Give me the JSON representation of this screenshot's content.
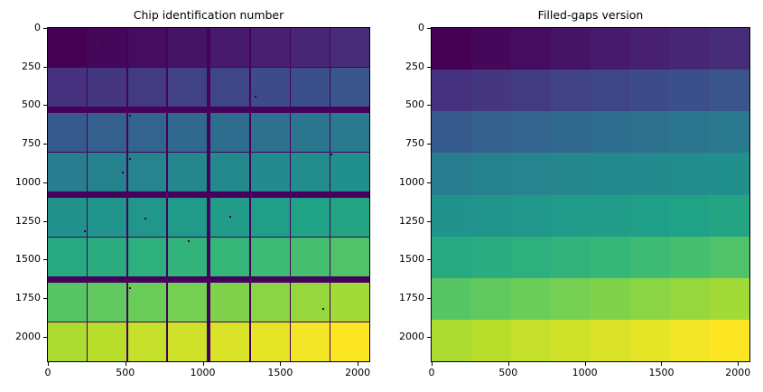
{
  "figure": {
    "background": "#ffffff"
  },
  "colormap": {
    "name": "viridis",
    "anchors": [
      "#440154",
      "#482878",
      "#3e4989",
      "#31688e",
      "#26828e",
      "#21918c",
      "#1fa187",
      "#35b779",
      "#6ece58",
      "#b5de2b",
      "#fde725"
    ],
    "gap_color": "#45015c",
    "speck_color": "#2e063f",
    "value_min": 0,
    "value_max": 63
  },
  "chart_data": [
    {
      "type": "heatmap",
      "title": "Chip identification number",
      "rows": 8,
      "cols": 8,
      "values": [
        [
          0,
          1,
          2,
          3,
          4,
          5,
          6,
          7
        ],
        [
          8,
          9,
          10,
          11,
          12,
          13,
          14,
          15
        ],
        [
          16,
          17,
          18,
          19,
          20,
          21,
          22,
          23
        ],
        [
          24,
          25,
          26,
          27,
          28,
          29,
          30,
          31
        ],
        [
          32,
          33,
          34,
          35,
          36,
          37,
          38,
          39
        ],
        [
          40,
          41,
          42,
          43,
          44,
          45,
          46,
          47
        ],
        [
          48,
          49,
          50,
          51,
          52,
          53,
          54,
          55
        ],
        [
          56,
          57,
          58,
          59,
          60,
          61,
          62,
          63
        ]
      ],
      "x_ticks": [
        0,
        500,
        1000,
        1500,
        2000
      ],
      "y_ticks": [
        0,
        250,
        500,
        750,
        1000,
        1250,
        1500,
        1750,
        2000
      ],
      "x_max": 2075,
      "y_max": 2160,
      "gaps": true,
      "layout_hints": {
        "col_thin_gap_pct": 0.42,
        "col_center_gap_pct": 1.4,
        "row_thin_gap_pct": 0.42,
        "row_thick_gap_pct": 1.9,
        "legend": "none",
        "grid": "off"
      },
      "specks": [
        {
          "x": 0.168,
          "y": 0.041
        },
        {
          "x": 0.644,
          "y": 0.203
        },
        {
          "x": 0.252,
          "y": 0.259
        },
        {
          "x": 0.252,
          "y": 0.389
        },
        {
          "x": 0.23,
          "y": 0.432
        },
        {
          "x": 0.879,
          "y": 0.378
        },
        {
          "x": 0.3,
          "y": 0.568
        },
        {
          "x": 0.566,
          "y": 0.565
        },
        {
          "x": 0.112,
          "y": 0.608
        },
        {
          "x": 0.434,
          "y": 0.638
        },
        {
          "x": 0.252,
          "y": 0.778
        },
        {
          "x": 0.854,
          "y": 0.841
        }
      ]
    },
    {
      "type": "heatmap",
      "title": "Filled-gaps version",
      "rows": 8,
      "cols": 8,
      "values": [
        [
          0,
          1,
          2,
          3,
          4,
          5,
          6,
          7
        ],
        [
          8,
          9,
          10,
          11,
          12,
          13,
          14,
          15
        ],
        [
          16,
          17,
          18,
          19,
          20,
          21,
          22,
          23
        ],
        [
          24,
          25,
          26,
          27,
          28,
          29,
          30,
          31
        ],
        [
          32,
          33,
          34,
          35,
          36,
          37,
          38,
          39
        ],
        [
          40,
          41,
          42,
          43,
          44,
          45,
          46,
          47
        ],
        [
          48,
          49,
          50,
          51,
          52,
          53,
          54,
          55
        ],
        [
          56,
          57,
          58,
          59,
          60,
          61,
          62,
          63
        ]
      ],
      "x_ticks": [
        0,
        500,
        1000,
        1500,
        2000
      ],
      "y_ticks": [
        0,
        250,
        500,
        750,
        1000,
        1250,
        1500,
        1750,
        2000
      ],
      "x_max": 2075,
      "y_max": 2160,
      "gaps": false,
      "layout_hints": {
        "legend": "none",
        "grid": "off"
      },
      "specks": []
    }
  ]
}
